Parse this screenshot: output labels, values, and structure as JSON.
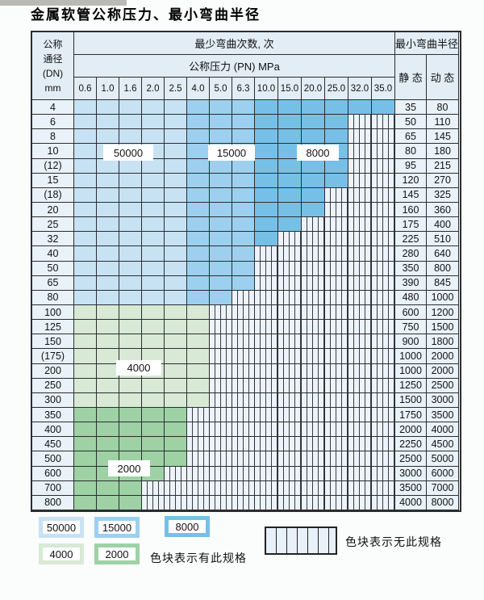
{
  "title": "金属软管公称压力、最小弯曲半径",
  "table": {
    "dn_header_lines": [
      "公称",
      "通径",
      "(DN)",
      "mm"
    ],
    "bend_times_header": "最少弯曲次数, 次",
    "pressure_header": "公称压力 (PN) MPa",
    "pressures": [
      "0.6",
      "1.0",
      "1.6",
      "2.0",
      "2.5",
      "4.0",
      "5.0",
      "6.3",
      "10.0",
      "15.0",
      "20.0",
      "25.0",
      "32.0",
      "35.0"
    ],
    "radius_header": "最小弯曲半径",
    "static_header": "静 态",
    "dynamic_header": "动 态",
    "rows": [
      {
        "dn": "4",
        "avail": 14,
        "band": "blue",
        "static": "35",
        "dynamic": "80"
      },
      {
        "dn": "6",
        "avail": 12,
        "band": "blue",
        "static": "50",
        "dynamic": "110"
      },
      {
        "dn": "8",
        "avail": 12,
        "band": "blue",
        "static": "65",
        "dynamic": "145"
      },
      {
        "dn": "10",
        "avail": 12,
        "band": "blue",
        "static": "80",
        "dynamic": "180"
      },
      {
        "dn": "(12)",
        "avail": 12,
        "band": "blue",
        "static": "95",
        "dynamic": "215"
      },
      {
        "dn": "15",
        "avail": 12,
        "band": "blue",
        "static": "120",
        "dynamic": "270"
      },
      {
        "dn": "(18)",
        "avail": 11,
        "band": "blue",
        "static": "145",
        "dynamic": "325"
      },
      {
        "dn": "20",
        "avail": 11,
        "band": "blue",
        "static": "160",
        "dynamic": "360"
      },
      {
        "dn": "25",
        "avail": 10,
        "band": "blue",
        "static": "175",
        "dynamic": "400"
      },
      {
        "dn": "32",
        "avail": 9,
        "band": "blue",
        "static": "225",
        "dynamic": "510"
      },
      {
        "dn": "40",
        "avail": 8,
        "band": "blue",
        "static": "280",
        "dynamic": "640"
      },
      {
        "dn": "50",
        "avail": 8,
        "band": "blue",
        "static": "350",
        "dynamic": "800"
      },
      {
        "dn": "65",
        "avail": 8,
        "band": "blue",
        "static": "390",
        "dynamic": "845"
      },
      {
        "dn": "80",
        "avail": 7,
        "band": "blue",
        "static": "480",
        "dynamic": "1000"
      },
      {
        "dn": "100",
        "avail": 6,
        "band": "green-light",
        "static": "600",
        "dynamic": "1200"
      },
      {
        "dn": "125",
        "avail": 6,
        "band": "green-light",
        "static": "750",
        "dynamic": "1500"
      },
      {
        "dn": "150",
        "avail": 6,
        "band": "green-light",
        "static": "900",
        "dynamic": "1800"
      },
      {
        "dn": "(175)",
        "avail": 6,
        "band": "green-light",
        "static": "1000",
        "dynamic": "2000"
      },
      {
        "dn": "200",
        "avail": 6,
        "band": "green-light",
        "static": "1000",
        "dynamic": "2000"
      },
      {
        "dn": "250",
        "avail": 6,
        "band": "green-light",
        "static": "1250",
        "dynamic": "2500"
      },
      {
        "dn": "300",
        "avail": 6,
        "band": "green-light",
        "static": "1500",
        "dynamic": "3000"
      },
      {
        "dn": "350",
        "avail": 5,
        "band": "green-dark",
        "static": "1750",
        "dynamic": "3500"
      },
      {
        "dn": "400",
        "avail": 5,
        "band": "green-dark",
        "static": "2000",
        "dynamic": "4000"
      },
      {
        "dn": "450",
        "avail": 5,
        "band": "green-dark",
        "static": "2250",
        "dynamic": "4500"
      },
      {
        "dn": "500",
        "avail": 5,
        "band": "green-dark",
        "static": "2500",
        "dynamic": "5000"
      },
      {
        "dn": "600",
        "avail": 4,
        "band": "green-dark",
        "static": "3000",
        "dynamic": "6000"
      },
      {
        "dn": "700",
        "avail": 3,
        "band": "green-dark",
        "static": "3500",
        "dynamic": "7000"
      },
      {
        "dn": "800",
        "avail": 3,
        "band": "green-dark",
        "static": "4000",
        "dynamic": "8000"
      }
    ]
  },
  "region_labels": [
    {
      "text": "50000"
    },
    {
      "text": "15000"
    },
    {
      "text": "8000"
    },
    {
      "text": "4000"
    },
    {
      "text": "2000"
    }
  ],
  "legend": {
    "swatches": [
      {
        "label": "50000",
        "color": "#c7e2f3"
      },
      {
        "label": "15000",
        "color": "#9cd0ee"
      },
      {
        "label": "8000",
        "color": "#76c0e8"
      },
      {
        "label": "4000",
        "color": "#d8e9d6"
      },
      {
        "label": "2000",
        "color": "#9ed2a4"
      }
    ],
    "available_note": "色块表示有此规格",
    "unavailable_note": "色块表示无此规格"
  },
  "colors": {
    "blue_light": "#c7e2f3",
    "blue_mid": "#9cd0ee",
    "blue_dark": "#76c0e8",
    "green_light": "#d8e9d6",
    "green_dark": "#9ed2a4",
    "cell_bg": "#e9f2f9",
    "header_bg": "#e2edf5",
    "grid": "#2a2d31"
  }
}
